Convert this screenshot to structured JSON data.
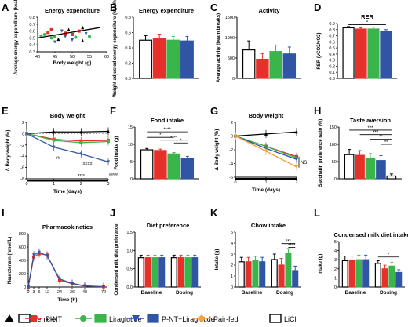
{
  "colors": {
    "vehicle": "#000000",
    "pnt": "#e8302a",
    "lira": "#3ab54a",
    "combo": "#2f55a4",
    "pairfed": "#f4a43c",
    "licl": "#000000"
  },
  "legend": {
    "items": [
      {
        "label": "Vehicle",
        "color": "#000000"
      },
      {
        "label": "P-NT",
        "color": "#e8302a"
      },
      {
        "label": "Liraglutide",
        "color": "#3ab54a"
      },
      {
        "label": "P-NT+Liraglutide",
        "color": "#2f55a4"
      },
      {
        "label": "Pair-fed",
        "color": "#f4a43c"
      },
      {
        "label": "LiCl",
        "color": "#000000"
      }
    ]
  },
  "chart_data": [
    {
      "id": "A",
      "letter": "A",
      "type": "scatter",
      "title": "Energy expenditure",
      "xlabel": "Body weight (g)",
      "ylabel": "Average energy expenditure (kcal/h)",
      "xlim": [
        40,
        60
      ],
      "ylim": [
        0.3,
        0.8
      ],
      "xticks": [
        "40",
        "45",
        "50",
        "55",
        "60"
      ],
      "yticks": [
        "0.3",
        "0.4",
        "0.5",
        "0.6",
        "0.7",
        "0.8"
      ],
      "points": [
        [
          41,
          0.53,
          "green"
        ],
        [
          42,
          0.55,
          "green"
        ],
        [
          43,
          0.58,
          "red"
        ],
        [
          44,
          0.5,
          "green"
        ],
        [
          45,
          0.52,
          "green"
        ],
        [
          46,
          0.48,
          "black"
        ],
        [
          47,
          0.6,
          "blue"
        ],
        [
          48,
          0.57,
          "red"
        ],
        [
          49,
          0.62,
          "black"
        ],
        [
          50,
          0.55,
          "red"
        ],
        [
          50,
          0.47,
          "blue"
        ],
        [
          51,
          0.51,
          "green"
        ],
        [
          52,
          0.6,
          "red"
        ],
        [
          53,
          0.65,
          "black"
        ],
        [
          54,
          0.56,
          "blue"
        ],
        [
          55,
          0.52,
          "green"
        ],
        [
          45,
          0.44,
          "blue"
        ],
        [
          53,
          0.46,
          "black"
        ],
        [
          48,
          0.52,
          "blue"
        ],
        [
          44,
          0.62,
          "red"
        ]
      ],
      "fit": [
        [
          40,
          0.5
        ],
        [
          58,
          0.65
        ]
      ]
    },
    {
      "id": "B",
      "letter": "B",
      "type": "bar",
      "title": "Energy expenditure",
      "ylabel": "Weight adjusted energy expenditure (kcal/h)",
      "ylim": [
        0,
        0.8
      ],
      "yticks": [
        "0.0",
        "0.2",
        "0.4",
        "0.6",
        "0.8"
      ],
      "values": [
        0.5,
        0.52,
        0.5,
        0.49
      ],
      "errors": [
        0.06,
        0.06,
        0.05,
        0.06
      ]
    },
    {
      "id": "C",
      "letter": "C",
      "type": "bar",
      "title": "Activity",
      "ylabel": "Average activity (beam breaks)",
      "ylim": [
        0,
        1500
      ],
      "yticks": [
        "0",
        "500",
        "1000",
        "1500"
      ],
      "values": [
        700,
        470,
        660,
        600
      ],
      "errors": [
        220,
        140,
        160,
        170
      ]
    },
    {
      "id": "D",
      "letter": "D",
      "type": "bar",
      "title": "RER",
      "ylabel": "RER (vCO2/vO2)",
      "ylim": [
        0,
        0.9
      ],
      "yticks": [
        "0.0",
        "0.1",
        "0.2",
        "0.3",
        "0.4",
        "0.5",
        "0.6",
        "0.7",
        "0.8",
        "0.9"
      ],
      "values": [
        0.83,
        0.81,
        0.81,
        0.77
      ],
      "errors": [
        0.02,
        0.02,
        0.03,
        0.03
      ],
      "sig": [
        {
          "text": "*",
          "from": 0,
          "to": 3,
          "y": 0.88
        }
      ]
    },
    {
      "id": "E",
      "letter": "E",
      "type": "line",
      "title": "Body weight",
      "xlabel": "Time (days)",
      "ylabel": "Δ Body weight (%)",
      "xlim": [
        0,
        3
      ],
      "ylim": [
        -8,
        2
      ],
      "xticks": [
        "0",
        "1",
        "2",
        "3"
      ],
      "yticks": [
        "-8",
        "-6",
        "-4",
        "-2",
        "0",
        "2"
      ],
      "series": [
        {
          "key": "vehicle",
          "values": [
            [
              0,
              0
            ],
            [
              1,
              0.3
            ],
            [
              2,
              0.3
            ],
            [
              3,
              0.4
            ]
          ]
        },
        {
          "key": "pnt",
          "values": [
            [
              0,
              0
            ],
            [
              1,
              -1
            ],
            [
              2,
              -1.3
            ],
            [
              3,
              -1.2
            ]
          ]
        },
        {
          "key": "lira",
          "values": [
            [
              0,
              0
            ],
            [
              1,
              -1.2
            ],
            [
              2,
              -1.6
            ],
            [
              3,
              -1.4
            ]
          ]
        },
        {
          "key": "combo",
          "values": [
            [
              0,
              0
            ],
            [
              1,
              -2.4
            ],
            [
              2,
              -3.6
            ],
            [
              3,
              -5
            ]
          ]
        }
      ],
      "annotations": [
        "##",
        "####",
        "****",
        "####"
      ]
    },
    {
      "id": "F",
      "letter": "F",
      "type": "bar",
      "title": "Food intake",
      "ylabel": "Food intake (g)",
      "ylim": [
        0,
        15
      ],
      "yticks": [
        "0",
        "5",
        "10",
        "15"
      ],
      "values": [
        8.4,
        8.2,
        7.2,
        5.9
      ],
      "errors": [
        0.4,
        0.4,
        0.4,
        0.6
      ],
      "sig": [
        {
          "text": "****",
          "from": 0,
          "to": 3,
          "y": 13.6
        },
        {
          "text": "*",
          "from": 0,
          "to": 2,
          "y": 12.0
        },
        {
          "text": "*",
          "from": 2,
          "to": 3,
          "y": 10.4
        },
        {
          "text": "****",
          "from": 1,
          "to": 3,
          "y": 11.2
        }
      ]
    },
    {
      "id": "G",
      "letter": "G",
      "type": "line",
      "title": "Body weight",
      "xlabel": "Time (days)",
      "ylabel": "Δ Body weight (%)",
      "xlim": [
        0,
        2
      ],
      "ylim": [
        -6,
        2
      ],
      "xticks": [
        "0",
        "1",
        "2"
      ],
      "yticks": [
        "-6",
        "-4",
        "-2",
        "0",
        "2"
      ],
      "series": [
        {
          "key": "vehicle",
          "values": [
            [
              0,
              0
            ],
            [
              1,
              0.3
            ],
            [
              2,
              0.6
            ]
          ]
        },
        {
          "key": "pnt",
          "values": [
            [
              0,
              0
            ],
            [
              1,
              -1.5
            ],
            [
              2,
              -3
            ]
          ]
        },
        {
          "key": "lira",
          "values": [
            [
              0,
              0
            ],
            [
              1,
              -1.5
            ],
            [
              2,
              -3.2
            ]
          ]
        },
        {
          "key": "combo",
          "values": [
            [
              0,
              0
            ],
            [
              1,
              -1.8
            ],
            [
              2,
              -3.4
            ]
          ]
        },
        {
          "key": "pairfed",
          "values": [
            [
              0,
              0
            ],
            [
              1,
              -2.2
            ],
            [
              2,
              -4.5
            ]
          ]
        }
      ],
      "ns": "NS"
    },
    {
      "id": "H",
      "letter": "H",
      "type": "bar",
      "title": "Taste aversion",
      "ylabel": "Saccharin preference ratio (%)",
      "ylim": [
        0,
        150
      ],
      "yticks": [
        "0",
        "50",
        "100",
        "150"
      ],
      "values": [
        70,
        68,
        58,
        53,
        8
      ],
      "errors": [
        15,
        14,
        15,
        14,
        6
      ],
      "sig": [
        {
          "text": "***",
          "from": 0,
          "to": 4,
          "y": 141
        },
        {
          "text": "***",
          "from": 1,
          "to": 4,
          "y": 128
        },
        {
          "text": "**",
          "from": 2,
          "to": 4,
          "y": 115
        },
        {
          "text": "**",
          "from": 3,
          "to": 4,
          "y": 100
        }
      ]
    },
    {
      "id": "I",
      "letter": "I",
      "type": "line",
      "title": "Pharmacokinetics",
      "xlabel": "Time (h)",
      "ylabel": "Neurotensin (nmol/L)",
      "xlim": [
        0,
        72
      ],
      "ylim": [
        0,
        800
      ],
      "xticks": [
        "0",
        "3",
        "6",
        "12",
        "24",
        "36",
        "48",
        "72"
      ],
      "yticks": [
        "0",
        "200",
        "400",
        "600",
        "800"
      ],
      "series": [
        {
          "key": "pnt",
          "values": [
            [
              0,
              0
            ],
            [
              3,
              450
            ],
            [
              6,
              500
            ],
            [
              12,
              480
            ],
            [
              24,
              100
            ],
            [
              36,
              50
            ],
            [
              48,
              15
            ],
            [
              72,
              5
            ]
          ]
        },
        {
          "key": "combo",
          "values": [
            [
              0,
              0
            ],
            [
              3,
              480
            ],
            [
              6,
              520
            ],
            [
              12,
              470
            ],
            [
              24,
              120
            ],
            [
              36,
              55
            ],
            [
              48,
              18
            ],
            [
              72,
              5
            ]
          ]
        }
      ]
    },
    {
      "id": "J",
      "letter": "J",
      "type": "bar",
      "title": "Diet preference",
      "ylabel": "Condensed milk diet preference",
      "ylim": [
        0,
        1.5
      ],
      "yticks": [
        "0.0",
        "0.5",
        "1.0",
        "1.5"
      ],
      "groups": [
        "Baseline",
        "Dosing"
      ],
      "values": [
        [
          0.8,
          0.8,
          0.8,
          0.8
        ],
        [
          0.8,
          0.8,
          0.8,
          0.8
        ]
      ],
      "errors": [
        [
          0.07,
          0.07,
          0.07,
          0.07
        ],
        [
          0.07,
          0.07,
          0.07,
          0.07
        ]
      ]
    },
    {
      "id": "K",
      "letter": "K",
      "type": "bar",
      "title": "Chow intake",
      "ylabel": "Intake (g)",
      "ylim": [
        0,
        5
      ],
      "yticks": [
        "0",
        "1",
        "2",
        "3",
        "4",
        "5"
      ],
      "groups": [
        "Baseline",
        "Dosing"
      ],
      "values": [
        [
          2.3,
          2.3,
          2.4,
          2.3
        ],
        [
          2.5,
          2.0,
          3.1,
          1.5
        ]
      ],
      "errors": [
        [
          0.4,
          0.4,
          0.4,
          0.4
        ],
        [
          0.5,
          0.6,
          0.4,
          0.4
        ]
      ],
      "sig": [
        {
          "text": "***",
          "group": 1,
          "from": 1,
          "to": 3,
          "y": 3.95
        },
        {
          "text": "****",
          "group": 1,
          "from": 2,
          "to": 3,
          "y": 3.6
        }
      ]
    },
    {
      "id": "L",
      "letter": "L",
      "type": "bar",
      "title": "Condensed milk diet intake",
      "ylabel": "Intake (g)",
      "ylim": [
        0,
        5
      ],
      "yticks": [
        "0",
        "1",
        "2",
        "3",
        "4",
        "5"
      ],
      "groups": [
        "Baseline",
        "Dosing"
      ],
      "values": [
        [
          2.9,
          2.9,
          3.0,
          3.0
        ],
        [
          2.6,
          2.0,
          2.3,
          1.6
        ]
      ],
      "errors": [
        [
          0.5,
          0.5,
          0.5,
          0.5
        ],
        [
          0.3,
          0.4,
          0.4,
          0.3
        ]
      ],
      "sig": [
        {
          "text": "*",
          "group": 1,
          "from": 0,
          "to": 3,
          "y": 3.3
        }
      ]
    }
  ]
}
